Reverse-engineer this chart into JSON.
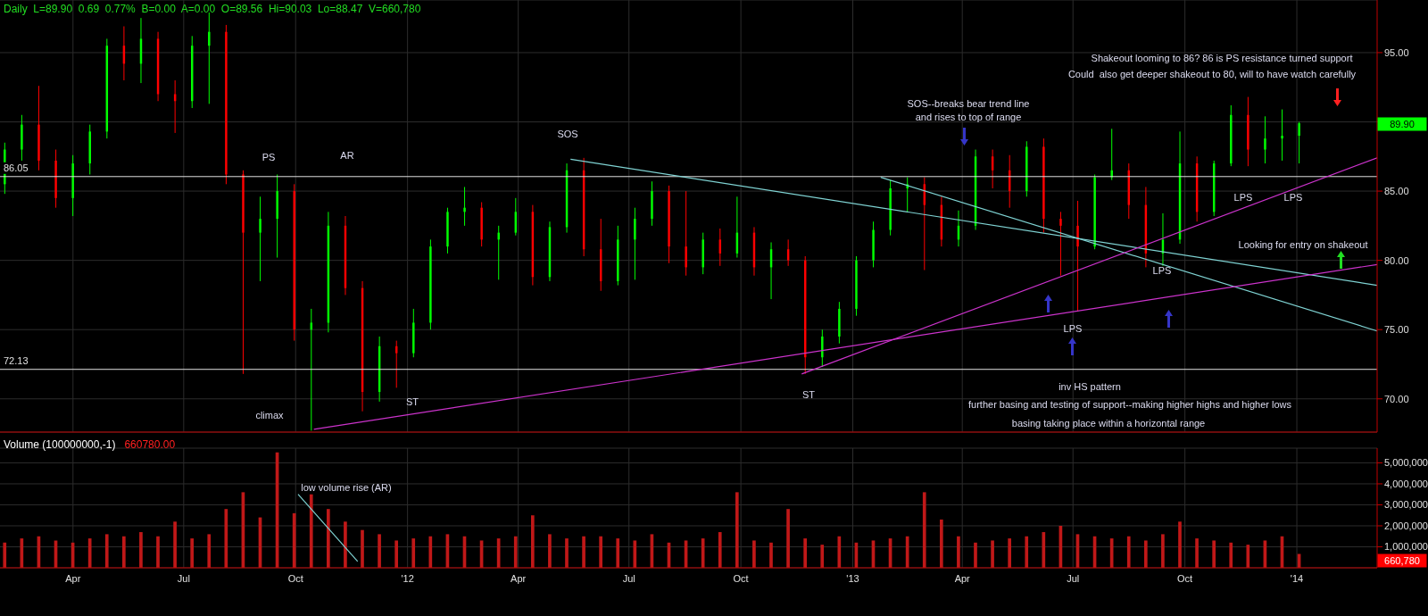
{
  "chart_data": [
    {
      "type": "candlestick",
      "title": "Daily  L=89.90  0.69  0.77%  B=0.00  A=0.00  O=89.56  Hi=90.03  Lo=88.47  V=660,780",
      "x": [
        "2011-02-04",
        "2011-02-18",
        "2011-03-04",
        "2011-03-18",
        "2011-04-01",
        "2011-04-15",
        "2011-04-29",
        "2011-05-13",
        "2011-05-27",
        "2011-06-10",
        "2011-06-24",
        "2011-07-08",
        "2011-07-22",
        "2011-08-05",
        "2011-08-19",
        "2011-09-02",
        "2011-09-16",
        "2011-09-30",
        "2011-10-14",
        "2011-10-28",
        "2011-11-11",
        "2011-11-25",
        "2011-12-09",
        "2011-12-23",
        "2012-01-06",
        "2012-01-20",
        "2012-02-03",
        "2012-02-17",
        "2012-03-02",
        "2012-03-16",
        "2012-03-30",
        "2012-04-13",
        "2012-04-27",
        "2012-05-11",
        "2012-05-25",
        "2012-06-08",
        "2012-06-22",
        "2012-07-06",
        "2012-07-20",
        "2012-08-03",
        "2012-08-17",
        "2012-08-31",
        "2012-09-14",
        "2012-09-28",
        "2012-10-12",
        "2012-10-26",
        "2012-11-09",
        "2012-11-23",
        "2012-12-07",
        "2012-12-21",
        "2013-01-04",
        "2013-01-18",
        "2013-02-01",
        "2013-02-15",
        "2013-03-01",
        "2013-03-15",
        "2013-03-29",
        "2013-04-12",
        "2013-04-26",
        "2013-05-10",
        "2013-05-24",
        "2013-06-07",
        "2013-06-21",
        "2013-07-05",
        "2013-07-19",
        "2013-08-02",
        "2013-08-16",
        "2013-08-30",
        "2013-09-13",
        "2013-09-27",
        "2013-10-11",
        "2013-10-25",
        "2013-11-08",
        "2013-11-22",
        "2013-12-06",
        "2013-12-20",
        "2014-01-03"
      ],
      "ohlc": [
        [
          85.5,
          88.5,
          84.8,
          88.0
        ],
        [
          88.0,
          90.5,
          87.2,
          89.8
        ],
        [
          89.8,
          92.6,
          86.5,
          87.2
        ],
        [
          87.2,
          88.0,
          83.8,
          84.5
        ],
        [
          84.5,
          87.6,
          83.2,
          87.0
        ],
        [
          87.0,
          89.8,
          86.2,
          89.3
        ],
        [
          89.3,
          96.0,
          88.8,
          95.5
        ],
        [
          95.5,
          96.9,
          93.0,
          94.2
        ],
        [
          94.2,
          97.5,
          92.8,
          96.0
        ],
        [
          96.0,
          96.5,
          91.5,
          92.0
        ],
        [
          92.0,
          93.0,
          89.2,
          91.5
        ],
        [
          91.5,
          96.2,
          91.0,
          95.5
        ],
        [
          95.5,
          97.9,
          91.3,
          96.5
        ],
        [
          96.5,
          97.0,
          85.5,
          86.2
        ],
        [
          86.2,
          86.5,
          71.8,
          82.0
        ],
        [
          82.0,
          84.6,
          78.5,
          83.0
        ],
        [
          83.0,
          86.2,
          80.2,
          85.0
        ],
        [
          85.0,
          85.5,
          74.2,
          75.0
        ],
        [
          75.0,
          76.5,
          67.7,
          75.5
        ],
        [
          75.5,
          83.5,
          74.8,
          82.5
        ],
        [
          82.5,
          83.2,
          77.5,
          78.0
        ],
        [
          78.0,
          78.5,
          69.1,
          70.5
        ],
        [
          70.5,
          74.5,
          69.8,
          73.8
        ],
        [
          73.8,
          74.2,
          70.8,
          73.3
        ],
        [
          73.3,
          76.5,
          73.0,
          75.5
        ],
        [
          75.5,
          81.5,
          75.0,
          81.0
        ],
        [
          81.0,
          83.8,
          80.5,
          83.5
        ],
        [
          83.5,
          85.3,
          82.5,
          83.8
        ],
        [
          83.8,
          84.2,
          81.0,
          81.5
        ],
        [
          81.5,
          82.5,
          78.6,
          82.0
        ],
        [
          82.0,
          84.5,
          81.8,
          83.5
        ],
        [
          83.5,
          84.0,
          78.2,
          78.8
        ],
        [
          78.8,
          82.8,
          78.5,
          82.4
        ],
        [
          82.4,
          87.0,
          82.0,
          86.5
        ],
        [
          86.5,
          87.4,
          80.3,
          80.8
        ],
        [
          80.8,
          83.0,
          77.8,
          78.5
        ],
        [
          78.5,
          82.5,
          78.2,
          81.5
        ],
        [
          81.5,
          83.8,
          78.6,
          83.0
        ],
        [
          83.0,
          85.7,
          82.5,
          85.0
        ],
        [
          85.0,
          85.4,
          79.8,
          81.0
        ],
        [
          81.0,
          85.0,
          78.9,
          79.5
        ],
        [
          79.5,
          82.0,
          79.0,
          81.5
        ],
        [
          81.5,
          82.3,
          79.6,
          80.5
        ],
        [
          80.5,
          84.6,
          80.2,
          82.0
        ],
        [
          82.0,
          82.4,
          78.9,
          79.5
        ],
        [
          79.5,
          81.3,
          77.2,
          80.8
        ],
        [
          80.8,
          81.5,
          79.6,
          80.0
        ],
        [
          80.0,
          80.3,
          71.8,
          73.0
        ],
        [
          73.0,
          75.0,
          72.3,
          74.5
        ],
        [
          74.5,
          77.0,
          74.0,
          76.5
        ],
        [
          76.5,
          80.3,
          76.0,
          80.0
        ],
        [
          80.0,
          82.8,
          79.5,
          82.2
        ],
        [
          82.2,
          85.8,
          81.8,
          85.2
        ],
        [
          85.2,
          86.0,
          83.5,
          85.5
        ],
        [
          85.5,
          86.0,
          79.3,
          84.0
        ],
        [
          84.0,
          84.6,
          81.0,
          81.5
        ],
        [
          81.5,
          83.6,
          81.0,
          82.5
        ],
        [
          82.5,
          88.0,
          82.2,
          87.5
        ],
        [
          87.5,
          88.0,
          85.2,
          86.5
        ],
        [
          86.5,
          87.6,
          83.8,
          85.0
        ],
        [
          85.0,
          88.6,
          84.6,
          88.2
        ],
        [
          88.2,
          88.8,
          82.0,
          83.0
        ],
        [
          83.0,
          83.5,
          78.9,
          82.5
        ],
        [
          82.5,
          84.3,
          76.3,
          81.0
        ],
        [
          81.0,
          86.2,
          80.8,
          86.0
        ],
        [
          86.0,
          89.5,
          85.8,
          86.5
        ],
        [
          86.5,
          87.0,
          83.0,
          84.0
        ],
        [
          84.0,
          85.3,
          79.5,
          80.5
        ],
        [
          80.5,
          83.4,
          79.6,
          81.5
        ],
        [
          81.5,
          89.3,
          81.2,
          87.0
        ],
        [
          87.0,
          87.5,
          82.8,
          83.5
        ],
        [
          83.5,
          87.2,
          83.2,
          87.0
        ],
        [
          87.0,
          91.2,
          86.8,
          90.5
        ],
        [
          90.5,
          91.8,
          86.8,
          88.0
        ],
        [
          88.0,
          90.4,
          87.0,
          88.8
        ],
        [
          88.8,
          90.9,
          87.2,
          89.0
        ],
        [
          89.0,
          90.0,
          87.0,
          89.9
        ]
      ],
      "colors": [
        "#00ff00",
        "#00ff00",
        "#ff0000",
        "#ff0000",
        "#00ff00",
        "#00ff00",
        "#00ff00",
        "#ff0000",
        "#00ff00",
        "#ff0000",
        "#ff0000",
        "#00ff00",
        "#00ff00",
        "#ff0000",
        "#ff0000",
        "#00ff00",
        "#00ff00",
        "#ff0000",
        "#00ff00",
        "#00ff00",
        "#ff0000",
        "#ff0000",
        "#00ff00",
        "#ff0000",
        "#00ff00",
        "#00ff00",
        "#00ff00",
        "#00ff00",
        "#ff0000",
        "#00ff00",
        "#00ff00",
        "#ff0000",
        "#00ff00",
        "#00ff00",
        "#ff0000",
        "#ff0000",
        "#00ff00",
        "#00ff00",
        "#00ff00",
        "#ff0000",
        "#ff0000",
        "#00ff00",
        "#ff0000",
        "#00ff00",
        "#ff0000",
        "#00ff00",
        "#ff0000",
        "#ff0000",
        "#00ff00",
        "#00ff00",
        "#00ff00",
        "#00ff00",
        "#00ff00",
        "#00ff00",
        "#ff0000",
        "#ff0000",
        "#00ff00",
        "#00ff00",
        "#ff0000",
        "#ff0000",
        "#00ff00",
        "#ff0000",
        "#ff0000",
        "#ff0000",
        "#00ff00",
        "#00ff00",
        "#ff0000",
        "#ff0000",
        "#00ff00",
        "#00ff00",
        "#ff0000",
        "#00ff00",
        "#00ff00",
        "#ff0000",
        "#00ff00",
        "#00ff00",
        "#00ff00"
      ],
      "series": [
        {
          "type": "line",
          "color": "#7fd3d3",
          "x": [
            "2012-05-14",
            "2014-03-08"
          ],
          "values": [
            87.3,
            78.2
          ]
        },
        {
          "type": "line",
          "color": "#7fd3d3",
          "x": [
            "2013-01-24",
            "2014-03-08"
          ],
          "values": [
            86.0,
            74.9
          ]
        },
        {
          "type": "line",
          "color": "#cc33cc",
          "x": [
            "2011-10-16",
            "2014-03-08"
          ],
          "values": [
            67.8,
            79.7
          ]
        },
        {
          "type": "line",
          "color": "#cc33cc",
          "x": [
            "2012-11-20",
            "2014-03-08"
          ],
          "values": [
            71.8,
            87.4
          ]
        }
      ],
      "xlim": [
        "2011-01-31",
        "2014-03-08"
      ],
      "xticks": [
        {
          "value": "2011-04-01",
          "label": null
        },
        {
          "value": "2011-07-01",
          "label": null
        },
        {
          "value": "2011-10-01",
          "label": null
        },
        {
          "value": "2012-01-01",
          "label": null
        },
        {
          "value": "2012-04-01",
          "label": null
        },
        {
          "value": "2012-07-01",
          "label": null
        },
        {
          "value": "2012-10-01",
          "label": null
        },
        {
          "value": "2013-01-01",
          "label": null
        },
        {
          "value": "2013-04-01",
          "label": null
        },
        {
          "value": "2013-07-01",
          "label": null
        },
        {
          "value": "2013-10-01",
          "label": null
        },
        {
          "value": "2014-01-01",
          "label": null
        }
      ],
      "ylim": [
        67.6,
        98.8
      ],
      "yticks": [
        {
          "value": 70,
          "label": "70.00"
        },
        {
          "value": 75,
          "label": "75.00"
        },
        {
          "value": 80,
          "label": "80.00"
        },
        {
          "value": 85,
          "label": "85.00"
        },
        {
          "value": 90,
          "label": null
        },
        {
          "value": 95,
          "label": "95.00"
        }
      ],
      "tick_labels": "y",
      "grid": true,
      "ref_lines": [
        {
          "axis": "y",
          "value": 86.05,
          "label": "86.05",
          "color": "#e0e0e0"
        },
        {
          "axis": "y",
          "value": 72.13,
          "label": "72.13",
          "color": "#e0e0e0"
        }
      ],
      "annotations": [
        "PS",
        "AR",
        "climax",
        "ST",
        "SOS",
        "ST",
        "LPS",
        "LPS",
        "LPS",
        "LPS",
        "89.90",
        "Shakeout looming to 86? 86 is PS resistance turned support",
        "Could  also get deeper shakeout to 80, will to have watch carefully",
        "SOS--breaks bear trend line",
        "and rises to top of range",
        "Looking for entry on shakeout",
        "inv HS pattern",
        "further basing and testing of support--making higher highs and higher lows",
        "basing taking place within a horizontal range"
      ]
    },
    {
      "type": "bar",
      "title": "Volume (100000000,-1)",
      "subtitle": "660780.00",
      "x": [
        "2011-02-04",
        "2011-02-18",
        "2011-03-04",
        "2011-03-18",
        "2011-04-01",
        "2011-04-15",
        "2011-04-29",
        "2011-05-13",
        "2011-05-27",
        "2011-06-10",
        "2011-06-24",
        "2011-07-08",
        "2011-07-22",
        "2011-08-05",
        "2011-08-19",
        "2011-09-02",
        "2011-09-16",
        "2011-09-30",
        "2011-10-14",
        "2011-10-28",
        "2011-11-11",
        "2011-11-25",
        "2011-12-09",
        "2011-12-23",
        "2012-01-06",
        "2012-01-20",
        "2012-02-03",
        "2012-02-17",
        "2012-03-02",
        "2012-03-16",
        "2012-03-30",
        "2012-04-13",
        "2012-04-27",
        "2012-05-11",
        "2012-05-25",
        "2012-06-08",
        "2012-06-22",
        "2012-07-06",
        "2012-07-20",
        "2012-08-03",
        "2012-08-17",
        "2012-08-31",
        "2012-09-14",
        "2012-09-28",
        "2012-10-12",
        "2012-10-26",
        "2012-11-09",
        "2012-11-23",
        "2012-12-07",
        "2012-12-21",
        "2013-01-04",
        "2013-01-18",
        "2013-02-01",
        "2013-02-15",
        "2013-03-01",
        "2013-03-15",
        "2013-03-29",
        "2013-04-12",
        "2013-04-26",
        "2013-05-10",
        "2013-05-24",
        "2013-06-07",
        "2013-06-21",
        "2013-07-05",
        "2013-07-19",
        "2013-08-02",
        "2013-08-16",
        "2013-08-30",
        "2013-09-13",
        "2013-09-27",
        "2013-10-11",
        "2013-10-25",
        "2013-11-08",
        "2013-11-22",
        "2013-12-06",
        "2013-12-20",
        "2014-01-03"
      ],
      "series": [
        {
          "type": "bar",
          "color": "#c01818",
          "values": [
            1200000,
            1400000,
            1500000,
            1300000,
            1200000,
            1400000,
            1600000,
            1500000,
            1700000,
            1500000,
            2200000,
            1400000,
            1600000,
            2800000,
            3600000,
            2400000,
            5500000,
            2600000,
            3500000,
            2800000,
            2200000,
            1800000,
            1600000,
            1300000,
            1400000,
            1500000,
            1600000,
            1500000,
            1300000,
            1400000,
            1500000,
            2500000,
            1600000,
            1400000,
            1500000,
            1500000,
            1400000,
            1300000,
            1600000,
            1200000,
            1300000,
            1400000,
            1700000,
            3600000,
            1300000,
            1200000,
            2800000,
            1400000,
            1100000,
            1500000,
            1200000,
            1300000,
            1400000,
            1500000,
            3600000,
            2300000,
            1500000,
            1200000,
            1300000,
            1400000,
            1500000,
            1700000,
            2000000,
            1600000,
            1500000,
            1400000,
            1500000,
            1300000,
            1600000,
            2200000,
            1400000,
            1300000,
            1200000,
            1100000,
            1300000,
            1500000,
            660780
          ]
        },
        {
          "type": "line",
          "color": "#7fd3d3",
          "x": [
            "2011-10-03",
            "2011-11-21"
          ],
          "values": [
            3500000,
            300000
          ]
        }
      ],
      "xlim": [
        "2011-01-31",
        "2014-03-08"
      ],
      "xticks": [
        {
          "value": "2011-04-01",
          "label": "Apr"
        },
        {
          "value": "2011-07-01",
          "label": "Jul"
        },
        {
          "value": "2011-10-01",
          "label": "Oct"
        },
        {
          "value": "2012-01-01",
          "label": "'12"
        },
        {
          "value": "2012-04-01",
          "label": "Apr"
        },
        {
          "value": "2012-07-01",
          "label": "Jul"
        },
        {
          "value": "2012-10-01",
          "label": "Oct"
        },
        {
          "value": "2013-01-01",
          "label": "'13"
        },
        {
          "value": "2013-04-01",
          "label": "Apr"
        },
        {
          "value": "2013-07-01",
          "label": "Jul"
        },
        {
          "value": "2013-10-01",
          "label": "Oct"
        },
        {
          "value": "2014-01-01",
          "label": "'14"
        }
      ],
      "ylim": [
        0,
        5700000
      ],
      "yticks": [
        {
          "value": 1000000,
          "label": "1,000,000"
        },
        {
          "value": 2000000,
          "label": "2,000,000"
        },
        {
          "value": 3000000,
          "label": "3,000,000"
        },
        {
          "value": 4000000,
          "label": "4,000,000"
        },
        {
          "value": 5000000,
          "label": "5,000,000"
        }
      ],
      "grid": true,
      "annotations": [
        "low volume rise (AR)",
        "660,780"
      ]
    }
  ]
}
